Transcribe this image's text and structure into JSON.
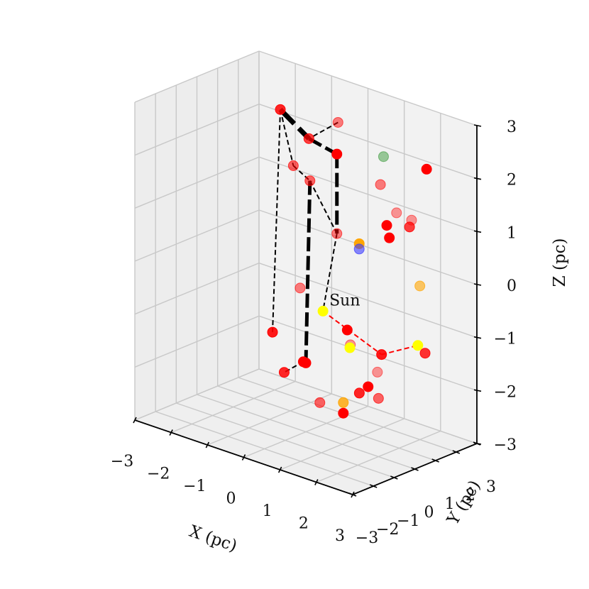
{
  "chart_data": {
    "type": "scatter",
    "projection": "3d",
    "grid": true,
    "xlabel": "X (pc)",
    "ylabel": "Y (pc)",
    "zlabel": "Z (pc)",
    "xlim": [
      -3,
      3
    ],
    "ylim": [
      -3,
      3
    ],
    "zlim": [
      -3,
      3
    ],
    "xticks": [
      "−3",
      "−2",
      "−1",
      "0",
      "1",
      "2",
      "3"
    ],
    "yticks": [
      "−3",
      "−2",
      "−1",
      "0",
      "1",
      "2",
      "3"
    ],
    "zticks": [
      "−3",
      "−2",
      "−1",
      "0",
      "1",
      "2",
      "3"
    ],
    "colors": {
      "red": "#ff0000",
      "orange": "#ffa500",
      "yellow": "#ffff00",
      "green": "#3a9a3a",
      "blue": "#3b3bff",
      "pane": "#f2f2f2",
      "grid": "#c8c8c8"
    },
    "points": [
      {
        "x": 0.6,
        "y": 0.5,
        "z": 2.9,
        "color": "red",
        "alpha": 0.5
      },
      {
        "x": -0.6,
        "y": 1.2,
        "z": 2.2,
        "color": "red",
        "alpha": 0.75
      },
      {
        "x": 0.0,
        "y": 1.5,
        "z": 2.0,
        "color": "red",
        "alpha": 1.0
      },
      {
        "x": -1.9,
        "y": 2.1,
        "z": 2.3,
        "color": "red",
        "alpha": 0.85
      },
      {
        "x": -1.2,
        "y": 1.5,
        "z": 1.5,
        "color": "red",
        "alpha": 0.6
      },
      {
        "x": -0.4,
        "y": 0.9,
        "z": 1.5,
        "color": "red",
        "alpha": 0.6
      },
      {
        "x": 0.0,
        "y": 1.5,
        "z": 0.5,
        "color": "red",
        "alpha": 0.5
      },
      {
        "x": -0.5,
        "y": 0.6,
        "z": -0.5,
        "color": "red",
        "alpha": 0.5
      },
      {
        "x": -2.4,
        "y": 2.6,
        "z": -2.1,
        "color": "red",
        "alpha": 0.9
      },
      {
        "x": 0.0,
        "y": 0.0,
        "z": -1.7,
        "color": "red",
        "alpha": 1.0
      },
      {
        "x": 0.5,
        "y": -0.2,
        "z": -2.3,
        "color": "red",
        "alpha": 0.6
      },
      {
        "x": 0.0,
        "y": 2.0,
        "z": -1.4,
        "color": "red",
        "alpha": 1.0
      },
      {
        "x": 0.2,
        "y": 1.8,
        "z": -1.6,
        "color": "red",
        "alpha": 0.4
      },
      {
        "x": 0.8,
        "y": 2.2,
        "z": 1.5,
        "color": "red",
        "alpha": 0.5
      },
      {
        "x": 0.6,
        "y": 2.7,
        "z": 1.9,
        "color": "green",
        "alpha": 0.5
      },
      {
        "x": 1.3,
        "y": 2.1,
        "z": 1.1,
        "color": "red",
        "alpha": 0.4
      },
      {
        "x": 1.9,
        "y": 2.5,
        "z": 2.0,
        "color": "red",
        "alpha": 1.0
      },
      {
        "x": 1.6,
        "y": 2.3,
        "z": 1.0,
        "color": "red",
        "alpha": 0.4
      },
      {
        "x": 2.0,
        "y": 0.4,
        "z": 1.3,
        "color": "red",
        "alpha": 1.0
      },
      {
        "x": 2.3,
        "y": 0.0,
        "z": 1.2,
        "color": "red",
        "alpha": 1.0
      },
      {
        "x": 2.4,
        "y": 0.8,
        "z": 1.3,
        "color": "red",
        "alpha": 0.75
      },
      {
        "x": 0.9,
        "y": 1.0,
        "z": 0.6,
        "color": "orange",
        "alpha": 1.0
      },
      {
        "x": 0.9,
        "y": 1.0,
        "z": 0.5,
        "color": "blue",
        "alpha": 0.6
      },
      {
        "x": 2.0,
        "y": 2.0,
        "z": -0.1,
        "color": "orange",
        "alpha": 0.6
      },
      {
        "x": 0.3,
        "y": 0.3,
        "z": -0.7,
        "color": "yellow",
        "alpha": 1.0
      },
      {
        "x": 0.3,
        "y": 1.6,
        "z": -1.6,
        "color": "yellow",
        "alpha": 1.0
      },
      {
        "x": 1.8,
        "y": 0.5,
        "z": -1.2,
        "color": "red",
        "alpha": 0.9
      },
      {
        "x": 2.4,
        "y": 1.2,
        "z": -1.0,
        "color": "yellow",
        "alpha": 1.0
      },
      {
        "x": 2.6,
        "y": 1.2,
        "z": -1.1,
        "color": "red",
        "alpha": 0.8
      },
      {
        "x": 1.8,
        "y": 0.3,
        "z": -1.5,
        "color": "red",
        "alpha": 0.4
      },
      {
        "x": 2.0,
        "y": 0.0,
        "z": -1.9,
        "color": "red",
        "alpha": 0.6
      },
      {
        "x": 2.0,
        "y": -0.5,
        "z": -1.6,
        "color": "red",
        "alpha": 1.0
      },
      {
        "x": 2.1,
        "y": -1.1,
        "z": -1.6,
        "color": "red",
        "alpha": 0.85
      },
      {
        "x": 2.4,
        "y": -2.4,
        "z": -1.5,
        "color": "orange",
        "alpha": 0.8
      },
      {
        "x": 2.4,
        "y": -2.4,
        "z": -1.7,
        "color": "red",
        "alpha": 1.0
      },
      {
        "x": 0.5,
        "y": -1.0,
        "z": -1.4,
        "color": "red",
        "alpha": 1.0
      },
      {
        "x": 0.6,
        "y": -2.1,
        "z": -1.4,
        "color": "red",
        "alpha": 0.85
      }
    ],
    "segments": [
      {
        "from": 0,
        "to": 1,
        "width": 2,
        "color": "#000000"
      },
      {
        "from": 1,
        "to": 2,
        "width": 5,
        "color": "#000000"
      },
      {
        "from": 3,
        "to": 1,
        "width": 7,
        "color": "#000000"
      },
      {
        "from": 3,
        "to": 4,
        "width": 2,
        "color": "#000000"
      },
      {
        "from": 4,
        "to": 5,
        "width": 2,
        "color": "#000000"
      },
      {
        "from": 5,
        "to": 6,
        "width": 2,
        "color": "#000000"
      },
      {
        "from": 2,
        "to": 6,
        "width": 5,
        "color": "#000000"
      },
      {
        "from": 6,
        "to": 24,
        "width": 2,
        "color": "#000000"
      },
      {
        "from": 3,
        "to": 8,
        "width": 2,
        "color": "#000000"
      },
      {
        "from": 5,
        "to": 9,
        "width": 5,
        "color": "#000000"
      },
      {
        "from": 9,
        "to": 35,
        "width": 2,
        "color": "#000000"
      },
      {
        "from": 35,
        "to": 36,
        "width": 2,
        "color": "#000000"
      },
      {
        "from": 24,
        "to": 26,
        "width": 2,
        "color": "#ff0000"
      },
      {
        "from": 26,
        "to": 27,
        "width": 2,
        "color": "#ff0000"
      }
    ],
    "annotations": [
      {
        "text": "Sun",
        "point": 24
      }
    ]
  }
}
